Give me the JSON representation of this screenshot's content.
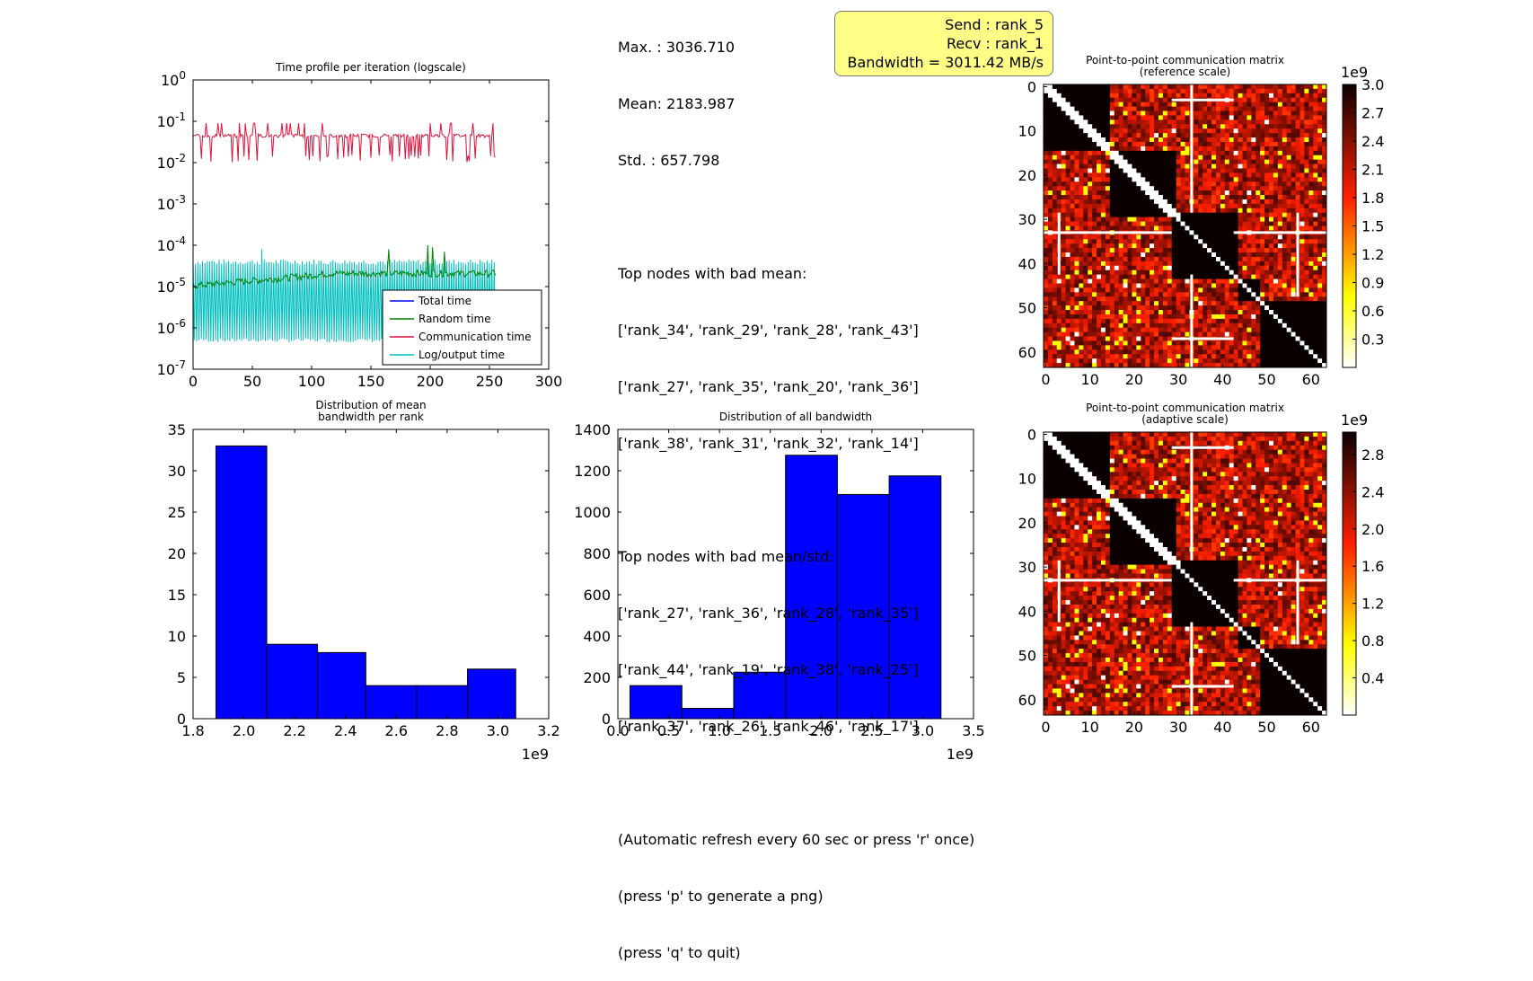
{
  "stats": {
    "lines": [
      "Max. : 3036.710",
      "Mean: 2183.987",
      "Std. : 657.798",
      "",
      "Top nodes with bad mean:",
      "['rank_34', 'rank_29', 'rank_28', 'rank_43']",
      "['rank_27', 'rank_35', 'rank_20', 'rank_36']",
      "['rank_38', 'rank_31', 'rank_32', 'rank_14']",
      "",
      "Top nodes with bad mean/std:",
      "['rank_27', 'rank_36', 'rank_28', 'rank_35']",
      "['rank_44', 'rank_19', 'rank_38', 'rank_25']",
      "['rank_37', 'rank_26', 'rank_46', 'rank_17']",
      "",
      "(Automatic refresh every 60 sec or press 'r' once)",
      "(press 'p' to generate a png)",
      "(press 'q' to quit)"
    ]
  },
  "tooltip": {
    "send": "Send : rank_5",
    "recv": "Recv : rank_1",
    "bandwidth": "Bandwidth = 3011.42 MB/s"
  },
  "colors": {
    "bars": "#0000ff",
    "total": "#0000ff",
    "random": "#008000",
    "communication": "#dc143c",
    "log": "#00bfbf"
  },
  "chart_data": [
    {
      "type": "line",
      "title": "Time profile per iteration (logscale)",
      "log_y": true,
      "xlim": [
        0,
        300
      ],
      "ylim": [
        1e-07,
        1
      ],
      "x_ticks": [
        "0",
        "50",
        "100",
        "150",
        "200",
        "250",
        "300"
      ],
      "y_ticks": [
        "10-7",
        "10-6",
        "10-5",
        "10-4",
        "10-3",
        "10-2",
        "10-1",
        "100"
      ],
      "legend_position": "lower-right",
      "series": [
        {
          "name": "Total time",
          "color": "#0000ff",
          "x_range": [
            0,
            255
          ],
          "baseline": 0.045,
          "low": 0.012
        },
        {
          "name": "Random time",
          "color": "#008000",
          "x_range": [
            0,
            255
          ],
          "baseline": 2e-05,
          "spikes": [
            [
              165,
              8e-05
            ],
            [
              198,
              0.0001
            ],
            [
              202,
              9e-05
            ],
            [
              212,
              7e-05
            ]
          ]
        },
        {
          "name": "Communication time",
          "color": "#dc143c",
          "x_range": [
            0,
            255
          ],
          "baseline": 0.045,
          "low": 0.012
        },
        {
          "name": "Log/output time",
          "color": "#00bfbf",
          "x_range": [
            0,
            255
          ],
          "high": 4e-05,
          "low": 5e-07
        }
      ]
    },
    {
      "type": "bar",
      "title": "Distribution of mean\nbandwidth per rank",
      "xlim": [
        1.8,
        3.2
      ],
      "ylim": [
        0,
        35
      ],
      "x_ticks": [
        "1.8",
        "2.0",
        "2.2",
        "2.4",
        "2.6",
        "2.8",
        "3.0",
        "3.2"
      ],
      "y_ticks": [
        "0",
        "5",
        "10",
        "15",
        "20",
        "25",
        "30",
        "35"
      ],
      "x_multiplier": "1e9",
      "bin_edges": [
        1.89,
        2.09,
        2.29,
        2.48,
        2.68,
        2.88,
        3.07
      ],
      "values": [
        33,
        9,
        8,
        4,
        4,
        6
      ]
    },
    {
      "type": "bar",
      "title": "Distribution of all bandwidth",
      "xlim": [
        0,
        3.5
      ],
      "ylim": [
        0,
        1400
      ],
      "x_ticks": [
        "0.0",
        "0.5",
        "1.0",
        "1.5",
        "2.0",
        "2.5",
        "3.0",
        "3.5"
      ],
      "y_ticks": [
        "0",
        "200",
        "400",
        "600",
        "800",
        "1000",
        "1200",
        "1400"
      ],
      "x_multiplier": "1e9",
      "bin_edges": [
        0.12,
        0.63,
        1.14,
        1.65,
        2.16,
        2.67,
        3.18
      ],
      "values": [
        160,
        50,
        225,
        1275,
        1085,
        1175
      ]
    },
    {
      "type": "heatmap",
      "title": "Point-to-point communication matrix\n(reference scale)",
      "size": 64,
      "x_ticks": [
        "0",
        "10",
        "20",
        "30",
        "40",
        "50",
        "60"
      ],
      "y_ticks": [
        "0",
        "10",
        "20",
        "30",
        "40",
        "50",
        "60"
      ],
      "colorbar_multiplier": "1e9",
      "colorbar_ticks": [
        "0.3",
        "0.6",
        "0.9",
        "1.2",
        "1.5",
        "1.8",
        "2.1",
        "2.4",
        "2.7",
        "3.0"
      ],
      "colorbar_range": [
        0,
        3.0
      ]
    },
    {
      "type": "heatmap",
      "title": "Point-to-point communication matrix\n(adaptive scale)",
      "size": 64,
      "x_ticks": [
        "0",
        "10",
        "20",
        "30",
        "40",
        "50",
        "60"
      ],
      "y_ticks": [
        "0",
        "10",
        "20",
        "30",
        "40",
        "50",
        "60"
      ],
      "colorbar_multiplier": "1e9",
      "colorbar_ticks": [
        "0.4",
        "0.8",
        "1.2",
        "1.6",
        "2.0",
        "2.4",
        "2.8"
      ],
      "colorbar_range": [
        0,
        3.04
      ]
    }
  ]
}
